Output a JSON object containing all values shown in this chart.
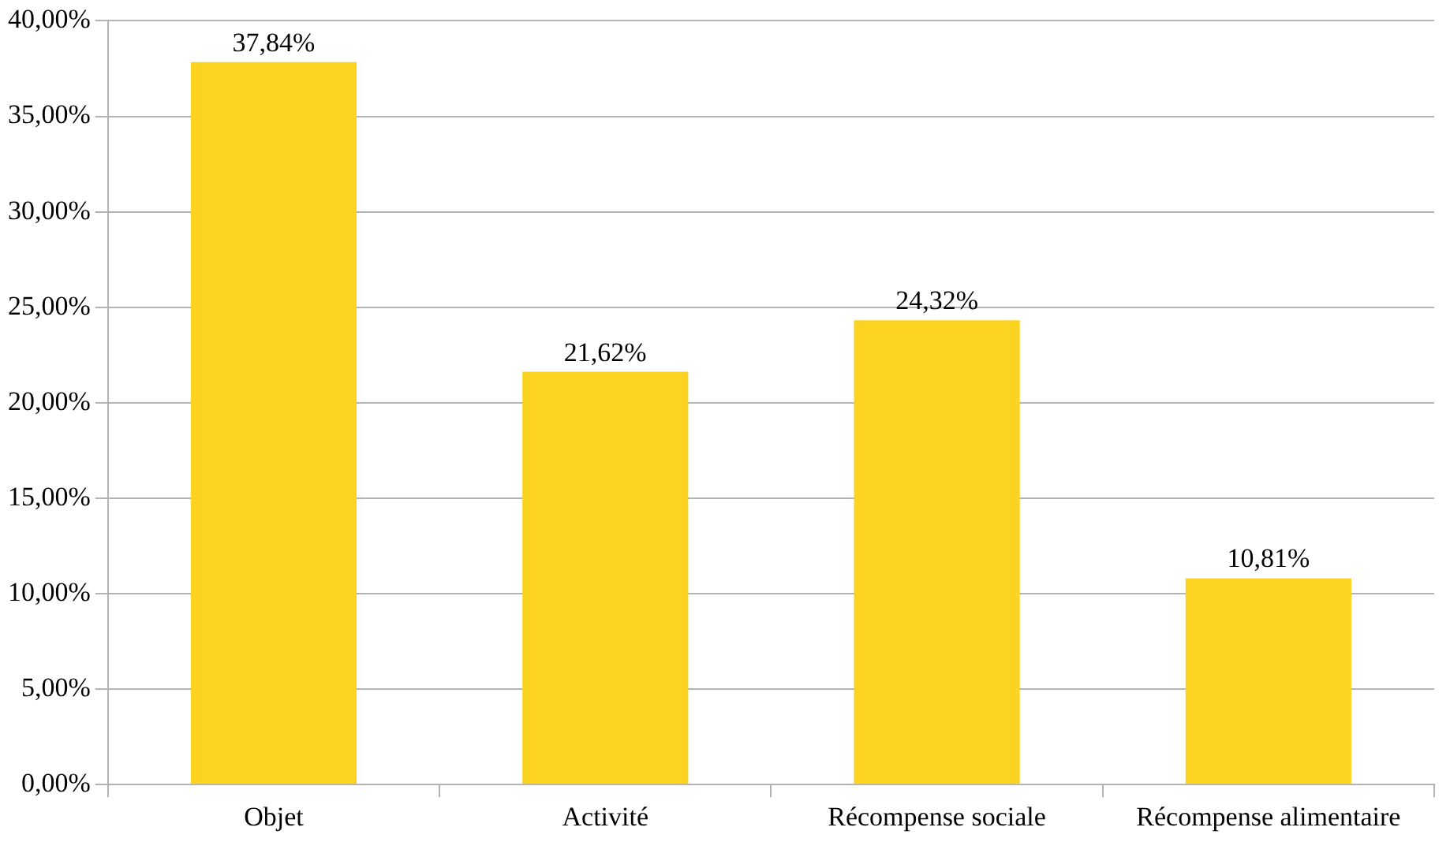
{
  "chart_data": {
    "type": "bar",
    "categories": [
      "Objet",
      "Activité",
      "Récompense sociale",
      "Récompense alimentaire"
    ],
    "values": [
      37.84,
      21.62,
      24.32,
      10.81
    ],
    "value_labels": [
      "37,84%",
      "21,62%",
      "24,32%",
      "10,81%"
    ],
    "color": "#fdd321",
    "ylim": [
      0,
      40
    ],
    "yticks": [
      {
        "value": 0,
        "label": "0,00%"
      },
      {
        "value": 5,
        "label": "5,00%"
      },
      {
        "value": 10,
        "label": "10,00%"
      },
      {
        "value": 15,
        "label": "15,00%"
      },
      {
        "value": 20,
        "label": "20,00%"
      },
      {
        "value": 25,
        "label": "25,00%"
      },
      {
        "value": 30,
        "label": "30,00%"
      },
      {
        "value": 35,
        "label": "35,00%"
      },
      {
        "value": 40,
        "label": "40,00%"
      }
    ],
    "grid": "y"
  }
}
